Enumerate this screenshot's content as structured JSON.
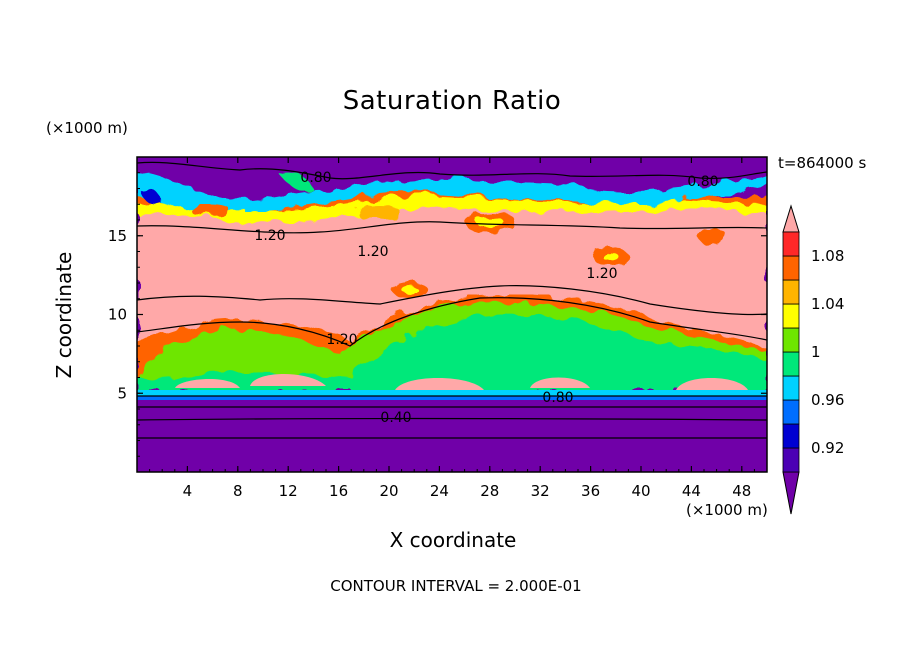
{
  "chart_data": {
    "type": "heatmap",
    "title": "Saturation Ratio",
    "xlabel": "X coordinate",
    "ylabel": "Z coordinate",
    "x_units": "(×1000 m)",
    "y_units": "(×1000 m)",
    "time_label": "t=864000 s",
    "footer": "CONTOUR INTERVAL = 2.000E-01",
    "xlim": [
      0,
      50
    ],
    "ylim": [
      0,
      20
    ],
    "x_ticks": [
      4,
      8,
      12,
      16,
      20,
      24,
      28,
      32,
      36,
      40,
      44,
      48
    ],
    "y_ticks": [
      5,
      10,
      15
    ],
    "colorbar": {
      "levels": [
        0.9,
        0.92,
        0.94,
        0.96,
        0.98,
        1.0,
        1.02,
        1.04,
        1.06,
        1.08,
        1.1
      ],
      "labels": [
        "0.92",
        "0.96",
        "1",
        "1.04",
        "1.08"
      ],
      "colors": [
        "#7000a8",
        "#4b00b4",
        "#0000d2",
        "#006eff",
        "#00d2ff",
        "#00e87a",
        "#6ee600",
        "#ffff00",
        "#ffb400",
        "#ff6400",
        "#ff2828",
        "#ffa8a8"
      ],
      "extend": "both"
    },
    "contour_labels": [
      "0.80",
      "0.80",
      "1.20",
      "1.20",
      "1.20",
      "1.20",
      "0.80",
      "0.40"
    ]
  }
}
